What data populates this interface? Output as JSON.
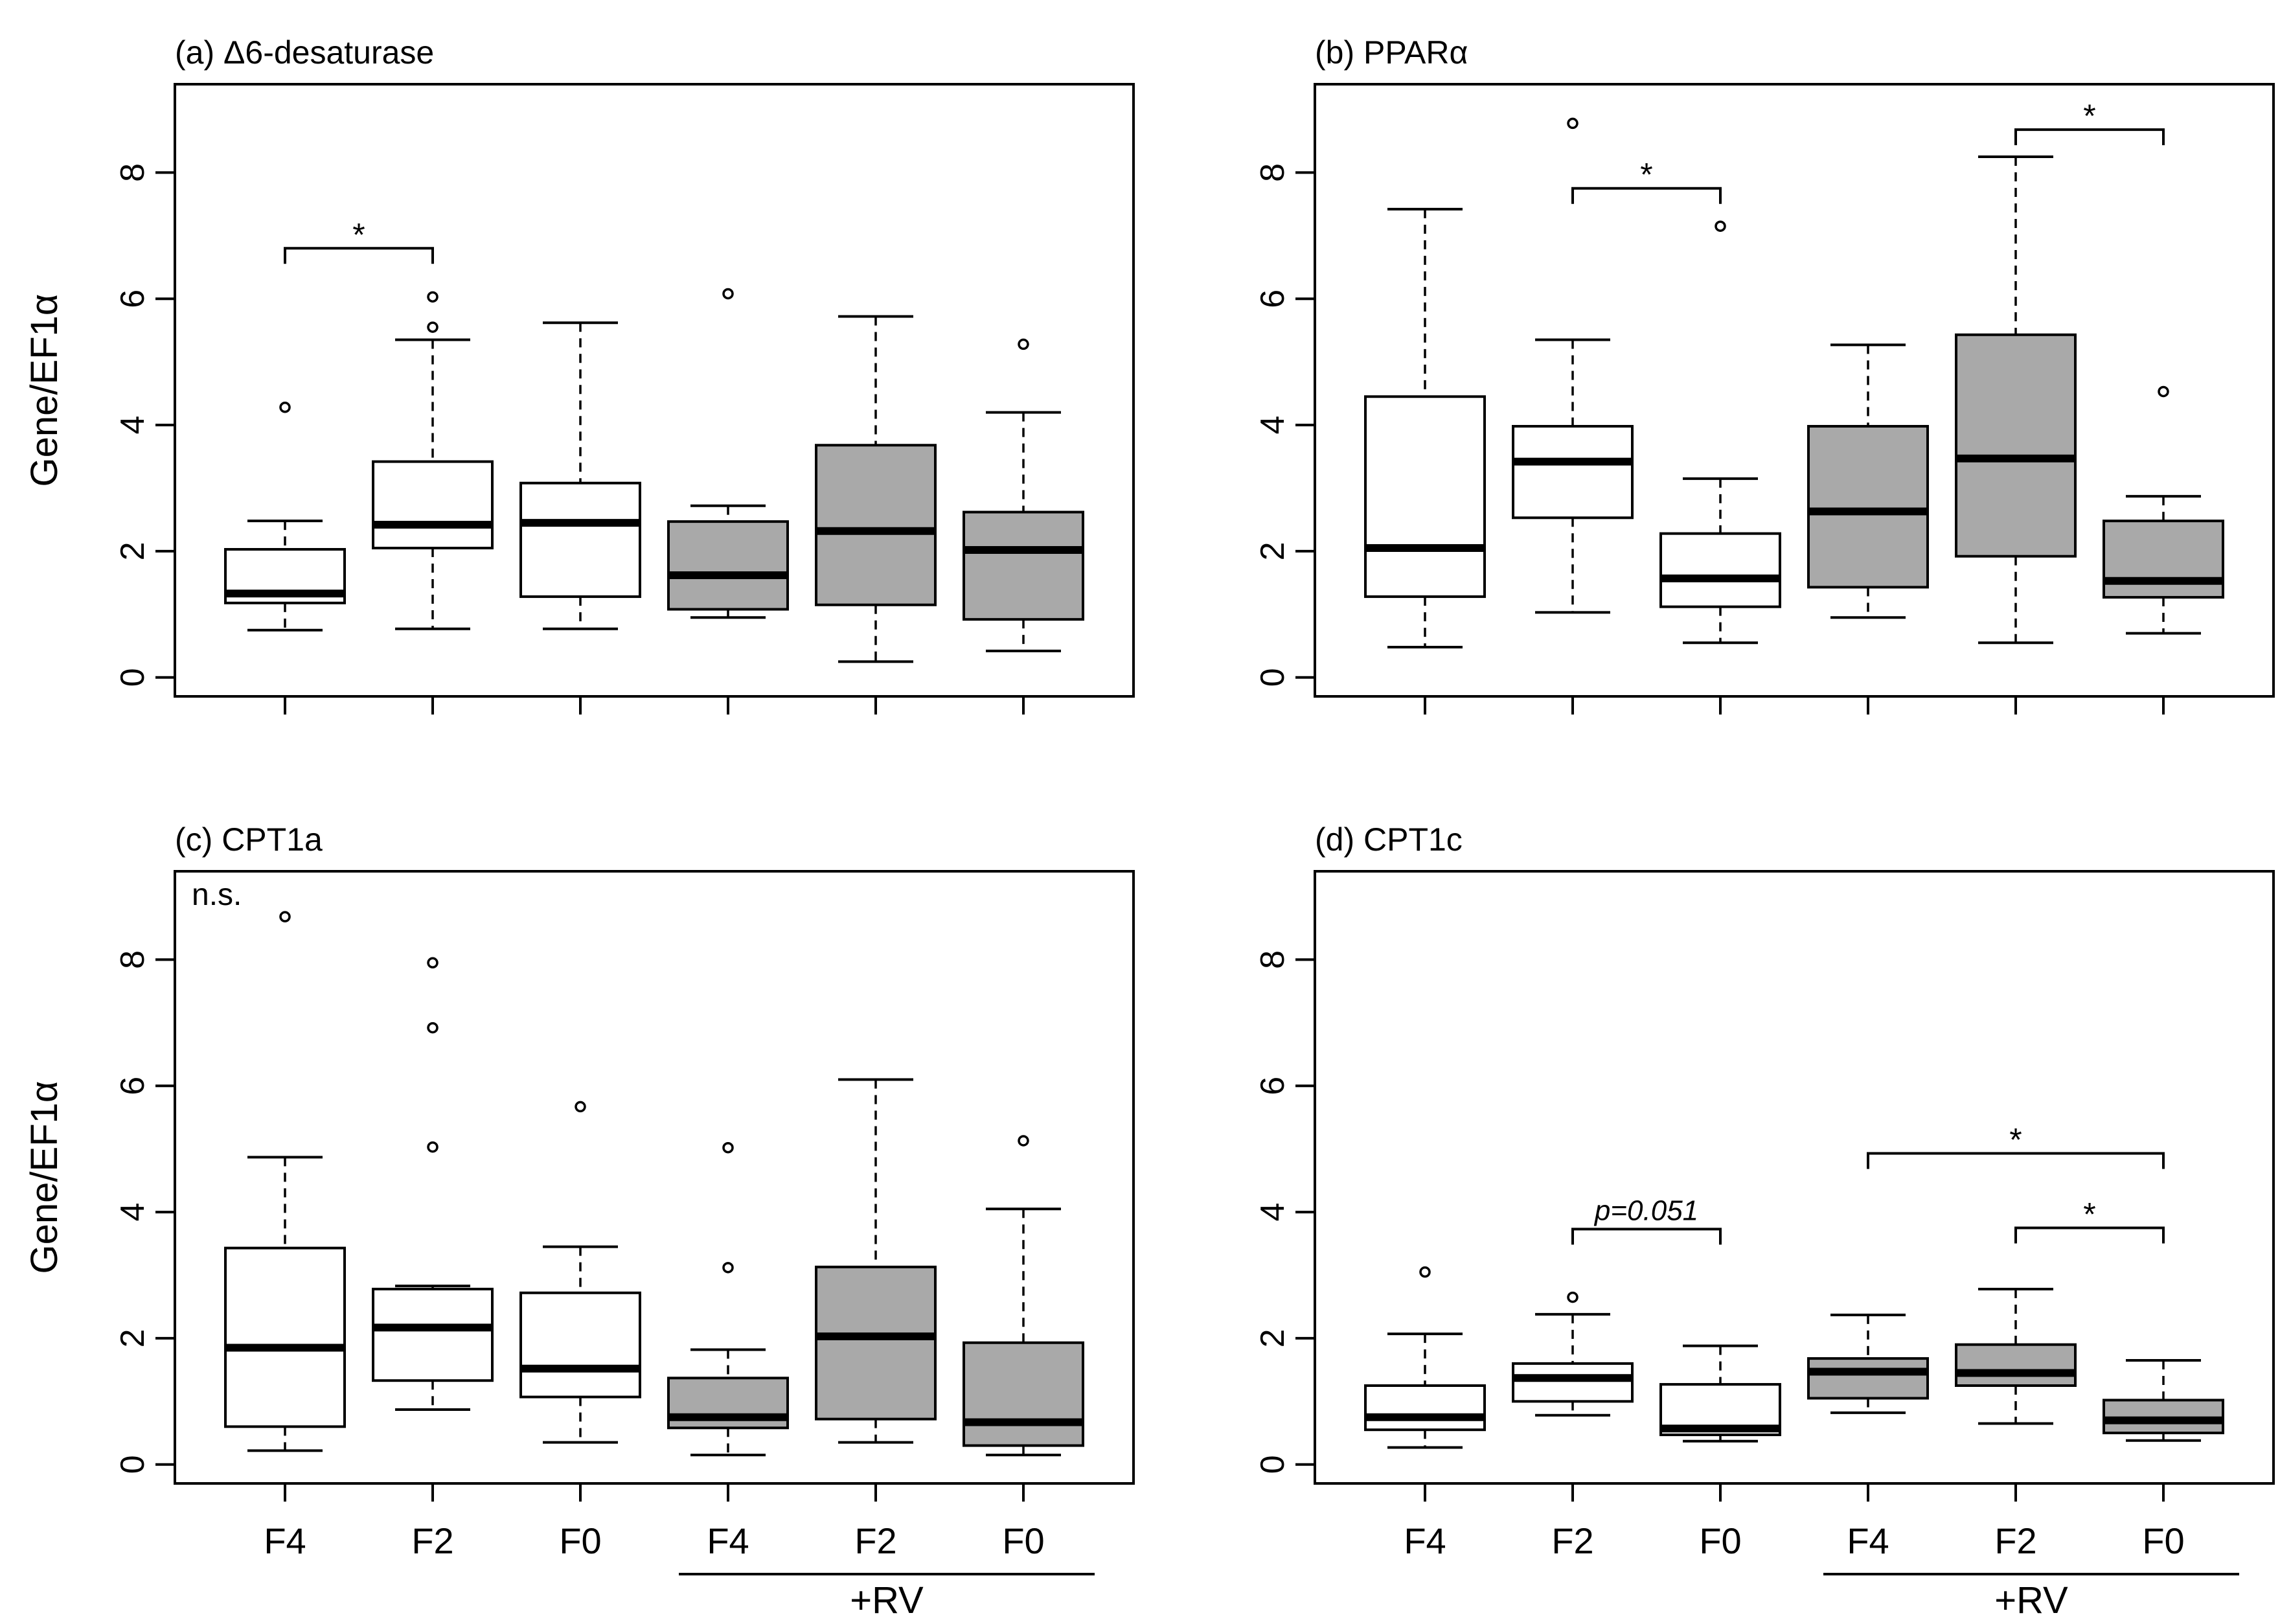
{
  "chart_data": [
    {
      "type": "boxplot",
      "title": "(a) Δ6-desaturase",
      "ylabel": "Gene/EF1α",
      "ylim": [
        -0.3,
        9.4
      ],
      "yticks": [
        "0",
        "2",
        "4",
        "6",
        "8"
      ],
      "boxes": [
        {
          "label": "F4",
          "fill": "#ffffff",
          "whisker_low": 0.75,
          "q1": 1.18,
          "median": 1.33,
          "q3": 2.03,
          "whisker_high": 2.48,
          "outliers": [
            4.28
          ]
        },
        {
          "label": "F2",
          "fill": "#ffffff",
          "whisker_low": 0.77,
          "q1": 2.05,
          "median": 2.42,
          "q3": 3.42,
          "whisker_high": 5.35,
          "outliers": [
            5.55,
            6.03
          ]
        },
        {
          "label": "F0",
          "fill": "#ffffff",
          "whisker_low": 0.77,
          "q1": 1.28,
          "median": 2.45,
          "q3": 3.08,
          "whisker_high": 5.62,
          "outliers": []
        },
        {
          "label": "F4",
          "fill": "#a9a9a9",
          "whisker_low": 0.95,
          "q1": 1.08,
          "median": 1.62,
          "q3": 2.47,
          "whisker_high": 2.72,
          "outliers": [
            6.08
          ]
        },
        {
          "label": "F2",
          "fill": "#a9a9a9",
          "whisker_low": 0.25,
          "q1": 1.15,
          "median": 2.32,
          "q3": 3.68,
          "whisker_high": 5.72,
          "outliers": []
        },
        {
          "label": "F0",
          "fill": "#a9a9a9",
          "whisker_low": 0.42,
          "q1": 0.92,
          "median": 2.02,
          "q3": 2.62,
          "whisker_high": 4.2,
          "outliers": [
            5.28
          ]
        }
      ],
      "brackets": [
        {
          "from": 0,
          "to": 1,
          "y": 6.8,
          "label": "*"
        }
      ],
      "note": ""
    },
    {
      "type": "boxplot",
      "title": "(b) PPARα",
      "ylabel": "",
      "ylim": [
        -0.3,
        9.4
      ],
      "yticks": [
        "0",
        "2",
        "4",
        "6",
        "8"
      ],
      "boxes": [
        {
          "label": "F4",
          "fill": "#ffffff",
          "whisker_low": 0.48,
          "q1": 1.28,
          "median": 2.05,
          "q3": 4.45,
          "whisker_high": 7.42,
          "outliers": []
        },
        {
          "label": "F2",
          "fill": "#ffffff",
          "whisker_low": 1.03,
          "q1": 2.53,
          "median": 3.42,
          "q3": 3.98,
          "whisker_high": 5.35,
          "outliers": [
            8.78
          ]
        },
        {
          "label": "F0",
          "fill": "#ffffff",
          "whisker_low": 0.55,
          "q1": 1.12,
          "median": 1.57,
          "q3": 2.28,
          "whisker_high": 3.15,
          "outliers": [
            7.15
          ]
        },
        {
          "label": "F4",
          "fill": "#a9a9a9",
          "whisker_low": 0.95,
          "q1": 1.43,
          "median": 2.63,
          "q3": 3.98,
          "whisker_high": 5.27,
          "outliers": []
        },
        {
          "label": "F2",
          "fill": "#a9a9a9",
          "whisker_low": 0.55,
          "q1": 1.92,
          "median": 3.47,
          "q3": 5.43,
          "whisker_high": 8.25,
          "outliers": []
        },
        {
          "label": "F0",
          "fill": "#a9a9a9",
          "whisker_low": 0.7,
          "q1": 1.27,
          "median": 1.53,
          "q3": 2.48,
          "whisker_high": 2.87,
          "outliers": [
            4.53
          ]
        }
      ],
      "brackets": [
        {
          "from": 1,
          "to": 2,
          "y": 7.75,
          "label": "*"
        },
        {
          "from": 4,
          "to": 5,
          "y": 8.68,
          "label": "*"
        }
      ],
      "note": ""
    },
    {
      "type": "boxplot",
      "title": "(c) CPT1a",
      "ylabel": "Gene/EF1α",
      "ylim": [
        -0.3,
        9.4
      ],
      "yticks": [
        "0",
        "2",
        "4",
        "6",
        "8"
      ],
      "boxes": [
        {
          "label": "F4",
          "fill": "#ffffff",
          "whisker_low": 0.22,
          "q1": 0.6,
          "median": 1.85,
          "q3": 3.43,
          "whisker_high": 4.87,
          "outliers": [
            8.68
          ]
        },
        {
          "label": "F2",
          "fill": "#ffffff",
          "whisker_low": 0.87,
          "q1": 1.33,
          "median": 2.17,
          "q3": 2.78,
          "whisker_high": 2.83,
          "outliers": [
            5.03,
            6.92,
            7.95
          ]
        },
        {
          "label": "F0",
          "fill": "#ffffff",
          "whisker_low": 0.35,
          "q1": 1.07,
          "median": 1.52,
          "q3": 2.72,
          "whisker_high": 3.45,
          "outliers": [
            5.67
          ]
        },
        {
          "label": "F4",
          "fill": "#a9a9a9",
          "whisker_low": 0.15,
          "q1": 0.58,
          "median": 0.75,
          "q3": 1.37,
          "whisker_high": 1.82,
          "outliers": [
            3.12,
            5.02
          ]
        },
        {
          "label": "F2",
          "fill": "#a9a9a9",
          "whisker_low": 0.35,
          "q1": 0.72,
          "median": 2.03,
          "q3": 3.13,
          "whisker_high": 6.1,
          "outliers": []
        },
        {
          "label": "F0",
          "fill": "#a9a9a9",
          "whisker_low": 0.15,
          "q1": 0.3,
          "median": 0.67,
          "q3": 1.93,
          "whisker_high": 4.05,
          "outliers": [
            5.13
          ]
        }
      ],
      "brackets": [],
      "note": "n.s."
    },
    {
      "type": "boxplot",
      "title": "(d) CPT1c",
      "ylabel": "",
      "ylim": [
        -0.3,
        9.4
      ],
      "yticks": [
        "0",
        "2",
        "4",
        "6",
        "8"
      ],
      "boxes": [
        {
          "label": "F4",
          "fill": "#ffffff",
          "whisker_low": 0.27,
          "q1": 0.55,
          "median": 0.75,
          "q3": 1.25,
          "whisker_high": 2.07,
          "outliers": [
            3.05
          ]
        },
        {
          "label": "F2",
          "fill": "#ffffff",
          "whisker_low": 0.78,
          "q1": 1.0,
          "median": 1.37,
          "q3": 1.6,
          "whisker_high": 2.38,
          "outliers": [
            2.65
          ]
        },
        {
          "label": "F0",
          "fill": "#ffffff",
          "whisker_low": 0.37,
          "q1": 0.47,
          "median": 0.57,
          "q3": 1.27,
          "whisker_high": 1.88,
          "outliers": []
        },
        {
          "label": "F4",
          "fill": "#a9a9a9",
          "whisker_low": 0.82,
          "q1": 1.05,
          "median": 1.47,
          "q3": 1.68,
          "whisker_high": 2.37,
          "outliers": []
        },
        {
          "label": "F2",
          "fill": "#a9a9a9",
          "whisker_low": 0.65,
          "q1": 1.25,
          "median": 1.45,
          "q3": 1.9,
          "whisker_high": 2.78,
          "outliers": []
        },
        {
          "label": "F0",
          "fill": "#a9a9a9",
          "whisker_low": 0.38,
          "q1": 0.5,
          "median": 0.7,
          "q3": 1.02,
          "whisker_high": 1.65,
          "outliers": []
        }
      ],
      "brackets": [
        {
          "from": 1,
          "to": 2,
          "y": 3.73,
          "label": "p=0.051",
          "italic": true
        },
        {
          "from": 4,
          "to": 5,
          "y": 3.75,
          "label": "*"
        },
        {
          "from": 3,
          "to": 5,
          "y": 4.93,
          "label": "*"
        }
      ],
      "note": ""
    }
  ],
  "group_labels": {
    "rv": "+RV"
  }
}
